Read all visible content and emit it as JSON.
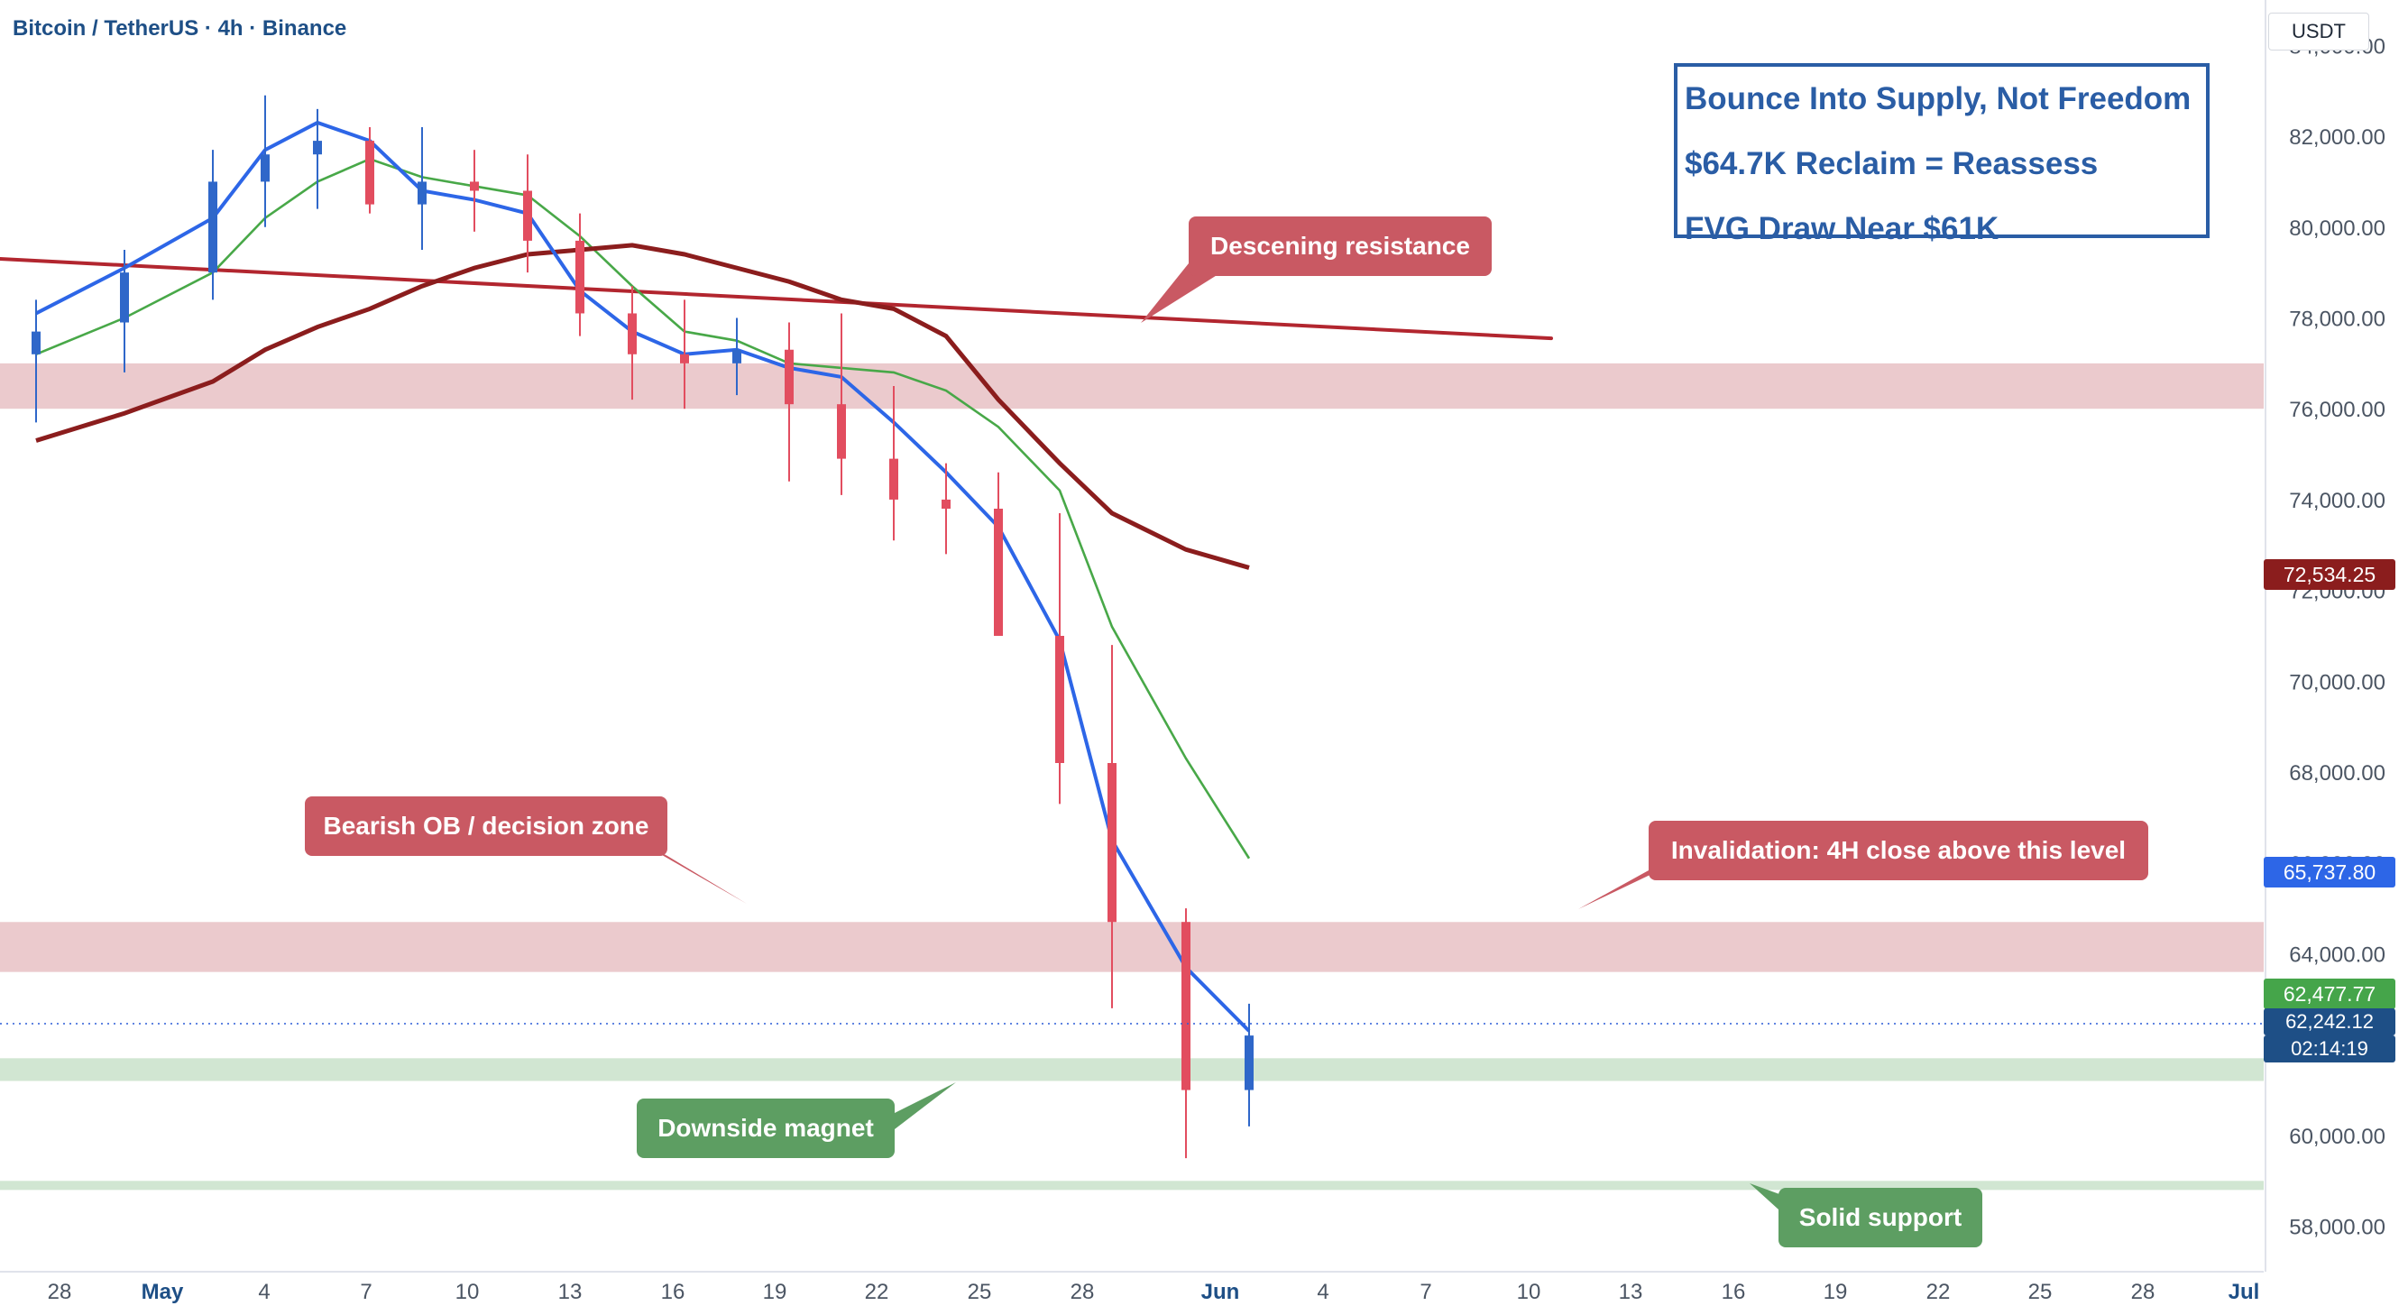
{
  "title": "Bitcoin / TetherUS · 4h · Binance",
  "currency": "USDT",
  "headline_lines": [
    "Bounce Into Supply, Not Freedom",
    "$64.7K Reclaim = Reassess",
    "FVG Draw Near $61K"
  ],
  "callouts": {
    "descending_resistance": "Descening resistance",
    "bearish_ob": "Bearish OB / decision zone",
    "invalidation": "Invalidation: 4H close above this level",
    "downside_magnet": "Downside magnet",
    "solid_support": "Solid support"
  },
  "price_labels": {
    "ma200": "72,534.25",
    "ma50": "65,737.80",
    "current": "62,477.77",
    "current_bid": "62,242.12",
    "countdown": "02:14:19"
  },
  "colors": {
    "title": "#1e4f86",
    "headline": "#2a5da5",
    "bear_candle": "#e24d5f",
    "bull_candle": "#2f67c9",
    "ma200": "#8b1d1d",
    "ma50": "#2d66e7",
    "ma20": "#48a848",
    "supply_zone": "#e9c4c8",
    "support_zone": "#cfe5d0",
    "callout_red": "#c95963",
    "callout_green": "#5d9e62"
  },
  "chart_data": {
    "type": "line",
    "xlabel": "",
    "ylabel": "",
    "x_ticks": [
      "28",
      "May",
      "4",
      "7",
      "10",
      "13",
      "16",
      "19",
      "22",
      "25",
      "28",
      "Jun",
      "4",
      "7",
      "10",
      "13",
      "16",
      "19",
      "22",
      "25",
      "28",
      "Jul"
    ],
    "y_ticks": [
      "84,000.00",
      "82,000.00",
      "80,000.00",
      "78,000.00",
      "76,000.00",
      "74,000.00",
      "72,000.00",
      "70,000.00",
      "68,000.00",
      "66,000.00",
      "64,000.00",
      "62,000.00",
      "60,000.00",
      "58,000.00"
    ],
    "ylim": [
      57000,
      85000
    ],
    "grid": false,
    "zones": [
      {
        "name": "Bearish OB / decision zone",
        "low": 63600,
        "high": 64700,
        "type": "supply"
      },
      {
        "name": "upper supply",
        "low": 76000,
        "high": 77000,
        "type": "supply"
      },
      {
        "name": "Downside magnet",
        "low": 61200,
        "high": 61700,
        "type": "support"
      },
      {
        "name": "Solid support",
        "low": 58800,
        "high": 59000,
        "type": "support"
      }
    ],
    "trendline": {
      "name": "Descening resistance",
      "x": [
        "27",
        "Jun 10"
      ],
      "y": [
        79300,
        77550
      ]
    },
    "series": [
      {
        "x": [
          "27",
          "29",
          "May",
          "2",
          "4",
          "6",
          "8",
          "10",
          "12",
          "14",
          "16",
          "18",
          "20",
          "22",
          "24",
          "26",
          "28",
          "30",
          "Jun",
          "3",
          "5",
          "7"
        ],
        "values": [
          77200,
          78000,
          79000,
          80200,
          81000,
          81500,
          81100,
          80900,
          80700,
          79800,
          78700,
          77700,
          77500,
          77000,
          76900,
          76800,
          76400,
          75600,
          74200,
          71200,
          68300,
          66100
        ]
      },
      {
        "x": [
          "27",
          "29",
          "May",
          "2",
          "4",
          "6",
          "8",
          "10",
          "12",
          "14",
          "16",
          "18",
          "20",
          "22",
          "24",
          "26",
          "28",
          "30",
          "Jun",
          "3",
          "5",
          "7"
        ],
        "values": [
          75300,
          75900,
          76600,
          77300,
          77800,
          78200,
          78700,
          79100,
          79400,
          79500,
          79600,
          79400,
          79100,
          78800,
          78400,
          78200,
          77600,
          76200,
          74800,
          73700,
          72900,
          72500
        ]
      },
      {
        "x": [
          "27",
          "29",
          "May",
          "2",
          "4",
          "6",
          "8",
          "10",
          "12",
          "14",
          "16",
          "18",
          "20",
          "22",
          "24",
          "26",
          "28",
          "30",
          "Jun",
          "3",
          "5",
          "7"
        ],
        "values": [
          78100,
          79100,
          80200,
          81700,
          82300,
          81900,
          80800,
          80600,
          80300,
          78600,
          77700,
          77200,
          77300,
          76900,
          76700,
          75700,
          74600,
          73400,
          70900,
          66500,
          63700,
          62300
        ]
      }
    ],
    "candles": {
      "x": [
        "27",
        "29",
        "May",
        "2",
        "4",
        "6",
        "8",
        "10",
        "12",
        "14",
        "16",
        "18",
        "20",
        "22",
        "24",
        "26",
        "28",
        "30",
        "Jun",
        "3",
        "5",
        "7"
      ],
      "open": [
        77200,
        77900,
        79000,
        81000,
        81600,
        81900,
        80500,
        81000,
        80800,
        79700,
        78100,
        77200,
        77000,
        77300,
        76100,
        74900,
        74000,
        73800,
        71000,
        68200,
        64700,
        61000
      ],
      "high": [
        78400,
        79500,
        81700,
        82900,
        82600,
        82200,
        82200,
        81700,
        81600,
        80300,
        78700,
        78400,
        78000,
        77900,
        78100,
        76500,
        74800,
        74600,
        73700,
        70800,
        65000,
        62900
      ],
      "low": [
        75700,
        76800,
        78400,
        80000,
        80400,
        80300,
        79500,
        79900,
        79000,
        77600,
        76200,
        76000,
        76300,
        74400,
        74100,
        73100,
        72800,
        71600,
        67300,
        62800,
        59500,
        60200
      ],
      "close": [
        77700,
        79000,
        81000,
        81600,
        81900,
        80500,
        81000,
        80800,
        79700,
        78100,
        77200,
        77000,
        77300,
        76100,
        74900,
        74000,
        73800,
        71000,
        68200,
        64700,
        61000,
        62200
      ]
    }
  }
}
